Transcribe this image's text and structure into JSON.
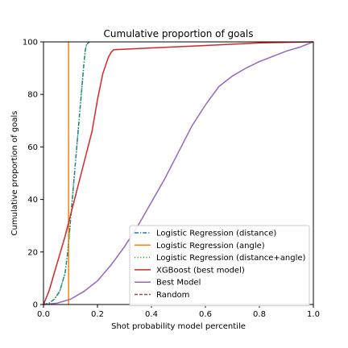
{
  "chart_data": {
    "type": "line",
    "title": "Cumulative proportion of goals",
    "xlabel": "Shot probability model percentile",
    "ylabel": "Cumulative proportion of goals",
    "xlim": [
      0,
      1
    ],
    "ylim": [
      0,
      100
    ],
    "xticks": [
      0.0,
      0.2,
      0.4,
      0.6,
      0.8,
      1.0
    ],
    "xtick_labels": [
      "0.0",
      "0.2",
      "0.4",
      "0.6",
      "0.8",
      "1.0"
    ],
    "yticks": [
      0,
      20,
      40,
      60,
      80,
      100
    ],
    "ytick_labels": [
      "0",
      "20",
      "40",
      "60",
      "80",
      "100"
    ],
    "grid": false,
    "legend": "lower-right",
    "series": [
      {
        "name": "Logistic Regression (distance)",
        "color": "#1f77b4",
        "dash": "dashdot",
        "x": [
          0.0,
          0.02,
          0.04,
          0.06,
          0.08,
          0.09,
          0.1,
          0.11,
          0.12,
          0.13,
          0.14,
          0.145,
          0.15,
          0.155,
          0.16,
          0.17
        ],
        "y": [
          0,
          0.5,
          2,
          5,
          12,
          20,
          32,
          44,
          56,
          68,
          80,
          86,
          92,
          97,
          99,
          100
        ]
      },
      {
        "name": "Logistic Regression (angle)",
        "color": "#ff7f0e",
        "dash": "solid",
        "x": [
          0.093,
          0.093,
          0.093
        ],
        "y": [
          0,
          50,
          100
        ]
      },
      {
        "name": "Logistic Regression (distance+angle)",
        "color": "#2ca02c",
        "dash": "dotted",
        "x": [
          0.0,
          0.02,
          0.04,
          0.06,
          0.08,
          0.09,
          0.1,
          0.11,
          0.12,
          0.13,
          0.14,
          0.145,
          0.15,
          0.155,
          0.16,
          0.17
        ],
        "y": [
          0,
          0.5,
          2,
          5,
          12,
          20,
          32,
          44,
          56,
          68,
          80,
          86,
          92,
          97,
          99,
          100
        ]
      },
      {
        "name": "XGBoost (best model)",
        "color": "#d62728",
        "dash": "solid",
        "x": [
          0.0,
          0.02,
          0.04,
          0.06,
          0.08,
          0.1,
          0.12,
          0.14,
          0.16,
          0.18,
          0.2,
          0.22,
          0.24,
          0.25,
          0.26,
          0.4,
          0.6,
          0.8,
          1.0
        ],
        "y": [
          0,
          5,
          12,
          19,
          26,
          34,
          42,
          50,
          58,
          66,
          78,
          88,
          94,
          96,
          97,
          97.7,
          98.6,
          99.6,
          100
        ]
      },
      {
        "name": "Best Model",
        "color": "#9467bd",
        "dash": "solid",
        "x": [
          0.0,
          0.05,
          0.1,
          0.15,
          0.2,
          0.25,
          0.3,
          0.35,
          0.4,
          0.45,
          0.5,
          0.55,
          0.6,
          0.65,
          0.7,
          0.75,
          0.8,
          0.85,
          0.9,
          0.95,
          1.0
        ],
        "y": [
          0,
          0.5,
          2,
          5,
          9,
          15,
          22,
          30,
          39,
          48,
          58,
          68,
          76,
          83,
          87,
          90,
          92.5,
          94.5,
          96.5,
          98,
          100
        ]
      },
      {
        "name": "Random",
        "color": "#8c564b",
        "dash": "dashed",
        "x": [
          0.0,
          0.005
        ],
        "y": [
          0,
          0.5
        ]
      }
    ]
  }
}
